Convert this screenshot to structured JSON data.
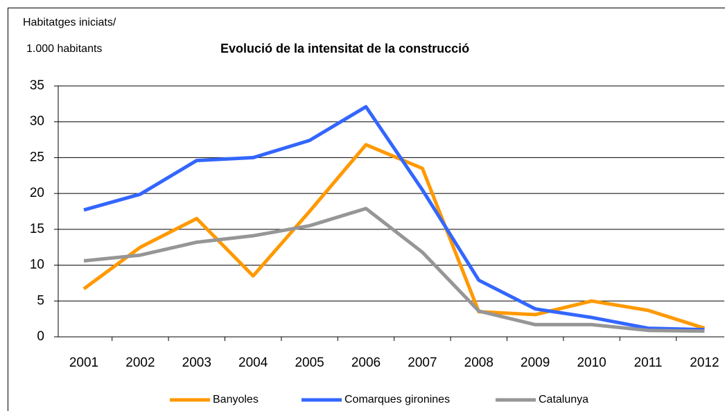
{
  "chart_data": {
    "type": "line",
    "title": "Evolució de la intensitat de la construcció",
    "y_axis_label": [
      "Habitatges iniciats/",
      "1.000 habitants"
    ],
    "categories": [
      "2001",
      "2002",
      "2003",
      "2004",
      "2005",
      "2006",
      "2007",
      "2008",
      "2009",
      "2010",
      "2011",
      "2012"
    ],
    "series": [
      {
        "name": "Banyoles",
        "color": "#ff9900",
        "values": [
          6.7,
          12.5,
          16.5,
          8.5,
          17.5,
          26.8,
          23.5,
          3.5,
          3.1,
          5.0,
          3.7,
          1.2
        ]
      },
      {
        "name": "Comarques gironines",
        "color": "#3366ff",
        "values": [
          17.7,
          19.9,
          24.6,
          25.0,
          27.4,
          32.1,
          20.5,
          7.9,
          3.9,
          2.7,
          1.2,
          1.0
        ]
      },
      {
        "name": "Catalunya",
        "color": "#969696",
        "values": [
          10.6,
          11.4,
          13.2,
          14.1,
          15.5,
          17.9,
          11.8,
          3.6,
          1.7,
          1.7,
          0.9,
          0.8
        ]
      }
    ],
    "ylim": [
      0,
      35
    ],
    "yticks": [
      0,
      5,
      10,
      15,
      20,
      25,
      30,
      35
    ],
    "grid": true,
    "legend": "bottom"
  }
}
